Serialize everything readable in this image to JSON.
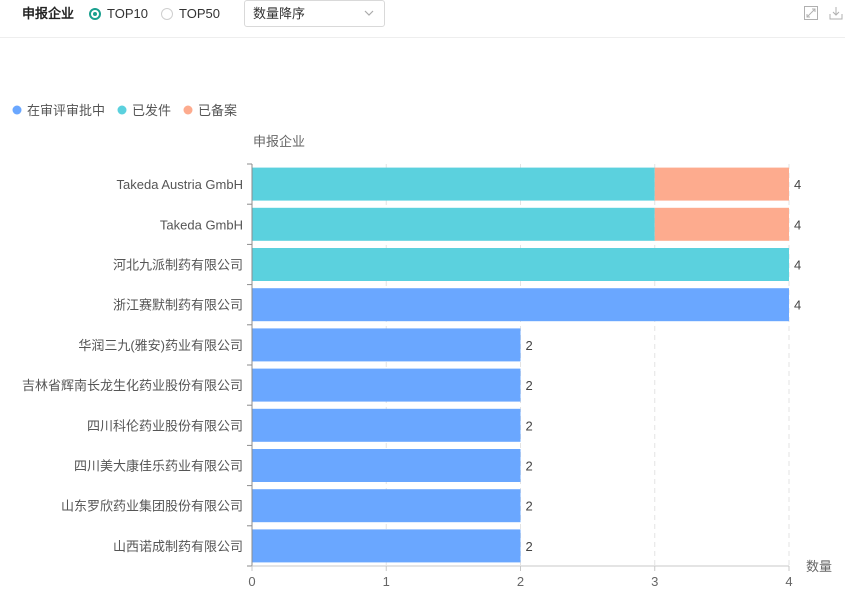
{
  "toolbar": {
    "title": "申报企业",
    "options": [
      {
        "label": "TOP10",
        "selected": true
      },
      {
        "label": "TOP50",
        "selected": false
      }
    ],
    "sort_value": "数量降序",
    "icons": [
      "expand-icon",
      "download-icon"
    ]
  },
  "colors": {
    "accent": "#1aa08f",
    "series": [
      "#6aa7ff",
      "#5bd1de",
      "#fdab8e"
    ]
  },
  "chart_data": {
    "type": "bar",
    "orientation": "horizontal",
    "stacked": true,
    "ylabel": "申报企业",
    "xlabel": "数量",
    "xlim": [
      0,
      4
    ],
    "xticks": [
      "0",
      "1",
      "2",
      "3",
      "4"
    ],
    "grid": "vertical-dashed",
    "legend_position": "top-left",
    "categories": [
      "Takeda Austria GmbH",
      "Takeda GmbH",
      "河北九派制药有限公司",
      "浙江赛默制药有限公司",
      "华润三九(雅安)药业有限公司",
      "吉林省辉南长龙生化药业股份有限公司",
      "四川科伦药业股份有限公司",
      "四川美大康佳乐药业有限公司",
      "山东罗欣药业集团股份有限公司",
      "山西诺成制药有限公司"
    ],
    "series": [
      {
        "name": "在审评审批中",
        "color": "#6aa7ff",
        "values": [
          0,
          0,
          0,
          4,
          2,
          2,
          2,
          2,
          2,
          2
        ]
      },
      {
        "name": "已发件",
        "color": "#5bd1de",
        "values": [
          3,
          3,
          4,
          0,
          0,
          0,
          0,
          0,
          0,
          0
        ]
      },
      {
        "name": "已备案",
        "color": "#fdab8e",
        "values": [
          1,
          1,
          0,
          0,
          0,
          0,
          0,
          0,
          0,
          0
        ]
      }
    ],
    "totals": [
      "4",
      "4",
      "4",
      "4",
      "2",
      "2",
      "2",
      "2",
      "2",
      "2"
    ]
  }
}
